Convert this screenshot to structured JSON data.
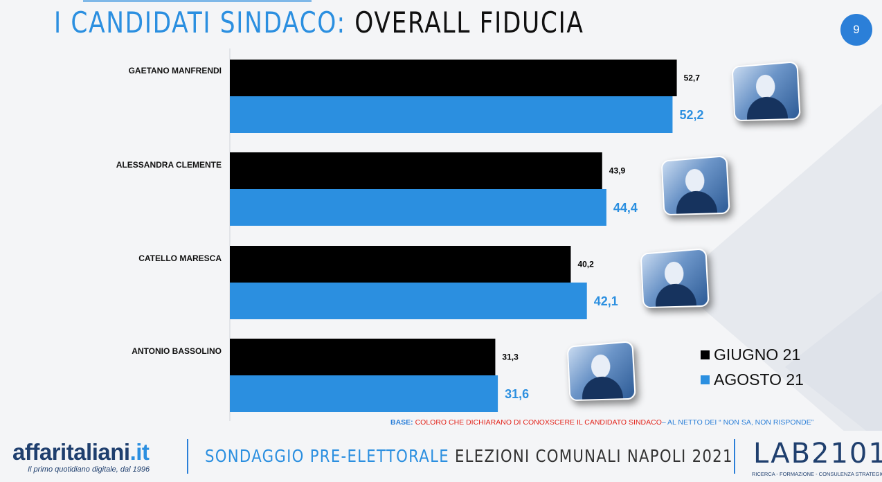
{
  "header": {
    "title_part1": "I CANDIDATI SINDACO:",
    "title_part2": " OVERALL FIDUCIA",
    "page_number": "9"
  },
  "colors": {
    "accent": "#2b8fe0",
    "series_giugno": "#000000",
    "series_agosto": "#2b8fe0",
    "base_red": "#e3241b"
  },
  "chart_data": {
    "type": "bar",
    "orientation": "horizontal",
    "categories": [
      "GAETANO MANFRENDI",
      "ALESSANDRA CLEMENTE",
      "CATELLO MARESCA",
      "ANTONIO BASSOLINO"
    ],
    "series": [
      {
        "name": "GIUGNO 21",
        "color": "#000000",
        "values": [
          52.7,
          43.9,
          40.2,
          31.3
        ],
        "labels": [
          "52,7",
          "43,9",
          "40,2",
          "31,3"
        ]
      },
      {
        "name": "AGOSTO 21",
        "color": "#2b8fe0",
        "values": [
          52.2,
          44.4,
          42.1,
          31.6
        ],
        "labels": [
          "52,2",
          "44,4",
          "42,1",
          "31,6"
        ]
      }
    ],
    "xlim": [
      0,
      60
    ],
    "legend_position": "bottom-right",
    "grid": false
  },
  "legend": {
    "items": [
      {
        "label": "GIUGNO 21",
        "color": "#000000"
      },
      {
        "label": "AGOSTO 21",
        "color": "#2b8fe0"
      }
    ]
  },
  "photos": [
    {
      "icon": "candidate-photo-manfrendi"
    },
    {
      "icon": "candidate-photo-clemente"
    },
    {
      "icon": "candidate-photo-maresca"
    },
    {
      "icon": "candidate-photo-bassolino"
    }
  ],
  "base_note": {
    "label": "BASE:",
    "text": " COLORO CHE DICHIARANO DI CONOXSCERE IL CANDIDATO SINDACO",
    "tail": "– AL NETTO DEI “ NON SA, NON RISPONDE”"
  },
  "footer": {
    "logo": "affaritaliani",
    "logo_tld": ".it",
    "logo_tagline": "Il primo quotidiano digitale, dal 1996",
    "survey_part1": "SONDAGGIO PRE-ELETTORALE",
    "survey_part2": " ELEZIONI COMUNALI NAPOLI 2021",
    "lab_part1": "LAB",
    "lab_part2": "2101",
    "lab_tagline": "RICERCA - FORMAZIONE - CONSULENZA STRATEGICA"
  }
}
